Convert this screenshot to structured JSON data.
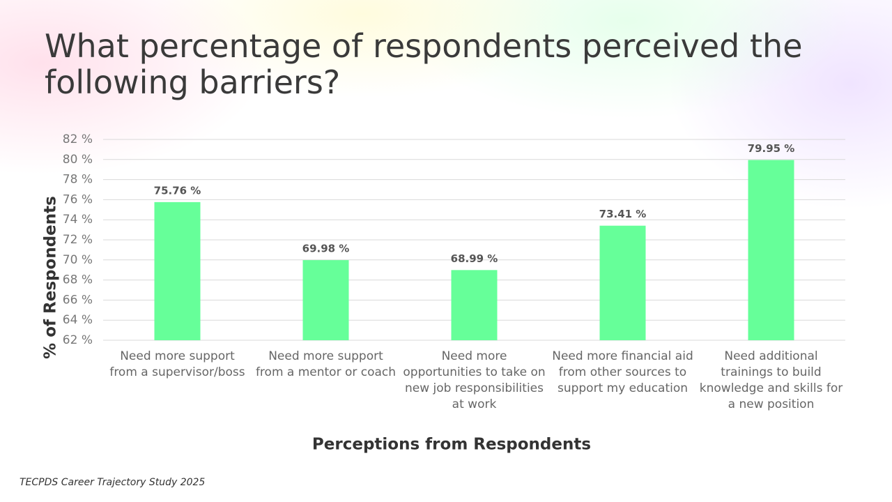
{
  "chart_data": {
    "type": "bar",
    "title": "What percentage of respondents perceived the following barriers?",
    "x_label": "Perceptions from Respondents",
    "y_label": "% of Respondents",
    "categories": [
      "Need more support from a supervisor/boss",
      "Need more support from a mentor or coach",
      "Need more opportunities to take on new job responsibilities at work",
      "Need more financial aid from other sources to support my education",
      "Need additional trainings to build knowledge and skills for a new position"
    ],
    "values": [
      75.76,
      69.98,
      68.99,
      73.41,
      79.95
    ],
    "value_labels": [
      "75.76 %",
      "69.98 %",
      "68.99 %",
      "73.41 %",
      "79.95 %"
    ],
    "color": "#66ff99",
    "ylim": [
      62,
      82
    ],
    "yticks": [
      {
        "value": 62,
        "label": "62 %"
      },
      {
        "value": 64,
        "label": "64 %"
      },
      {
        "value": 66,
        "label": "66 %"
      },
      {
        "value": 68,
        "label": "68 %"
      },
      {
        "value": 70,
        "label": "70 %"
      },
      {
        "value": 72,
        "label": "72 %"
      },
      {
        "value": 74,
        "label": "74 %"
      },
      {
        "value": 76,
        "label": "76 %"
      },
      {
        "value": 78,
        "label": "78 %"
      },
      {
        "value": 80,
        "label": "80 %"
      },
      {
        "value": 82,
        "label": "82 %"
      }
    ],
    "grid": true,
    "source": "TECPDS Career Trajectory Study 2025"
  }
}
